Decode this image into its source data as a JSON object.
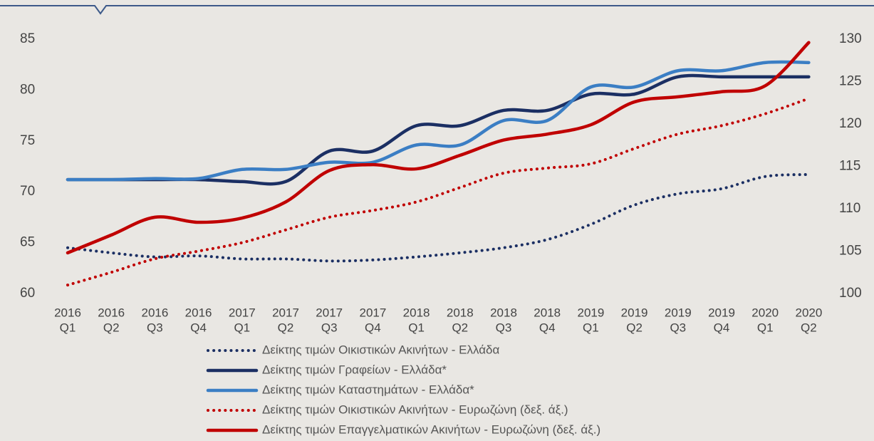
{
  "chart_data": {
    "type": "line",
    "categories": [
      [
        "2016",
        "Q1"
      ],
      [
        "2016",
        "Q2"
      ],
      [
        "2016",
        "Q3"
      ],
      [
        "2016",
        "Q4"
      ],
      [
        "2017",
        "Q1"
      ],
      [
        "2017",
        "Q2"
      ],
      [
        "2017",
        "Q3"
      ],
      [
        "2017",
        "Q4"
      ],
      [
        "2018",
        "Q1"
      ],
      [
        "2018",
        "Q2"
      ],
      [
        "2018",
        "Q3"
      ],
      [
        "2018",
        "Q4"
      ],
      [
        "2019",
        "Q1"
      ],
      [
        "2019",
        "Q2"
      ],
      [
        "2019",
        "Q3"
      ],
      [
        "2019",
        "Q4"
      ],
      [
        "2020",
        "Q1"
      ],
      [
        "2020",
        "Q2"
      ]
    ],
    "ylim": [
      60,
      85
    ],
    "yticks": [
      60,
      65,
      70,
      75,
      80,
      85
    ],
    "y2lim": [
      100,
      130
    ],
    "y2ticks": [
      100,
      105,
      110,
      115,
      120,
      125,
      130
    ],
    "series": [
      {
        "name": "Δείκτης τιμών Οικιστικών Ακινήτων - Ελλάδα",
        "color": "#1b2f63",
        "style": "dotted",
        "values": [
          64.5,
          64.0,
          63.6,
          63.7,
          63.4,
          63.4,
          63.2,
          63.3,
          63.6,
          64.0,
          64.5,
          65.3,
          66.8,
          68.7,
          69.8,
          70.3,
          71.5,
          71.7
        ]
      },
      {
        "name": "Δείκτης τιμών Γραφείων - Ελλάδα*",
        "color": "#1b2f63",
        "style": "solid",
        "values": [
          71.2,
          71.2,
          71.2,
          71.2,
          71.0,
          71.0,
          74.0,
          74.0,
          76.5,
          76.5,
          78.0,
          78.0,
          79.6,
          79.6,
          81.3,
          81.3,
          81.3,
          81.3
        ]
      },
      {
        "name": "Δείκτης τιμών Καταστημάτων  - Ελλάδα*",
        "color": "#3b7ec4",
        "style": "solid",
        "values": [
          71.2,
          71.2,
          71.3,
          71.3,
          72.2,
          72.2,
          72.9,
          72.9,
          74.6,
          74.6,
          77.0,
          77.0,
          80.3,
          80.3,
          81.9,
          81.9,
          82.7,
          82.7
        ]
      },
      {
        "name": "Δείκτης τιμών Οικιστικών Ακινήτων - Ευρωζώνη (δεξ. άξ.)",
        "color": "#c00000",
        "style": "dotted",
        "axis": "y2",
        "values": [
          101.0,
          102.5,
          104.1,
          105.0,
          106.0,
          107.5,
          109.0,
          109.8,
          110.8,
          112.5,
          114.2,
          114.8,
          115.3,
          117.1,
          118.8,
          119.8,
          121.2,
          123.0
        ]
      },
      {
        "name": "Δείκτης τιμών Επαγγελματικών Ακινήτων - Ευρωζώνη (δεξ. άξ.)",
        "color": "#c00000",
        "style": "solid",
        "axis": "y2",
        "values": [
          104.8,
          106.9,
          109.0,
          108.4,
          108.9,
          110.8,
          114.5,
          115.2,
          114.7,
          116.3,
          118.1,
          118.8,
          119.9,
          122.6,
          123.2,
          123.8,
          124.5,
          129.6
        ]
      }
    ]
  }
}
